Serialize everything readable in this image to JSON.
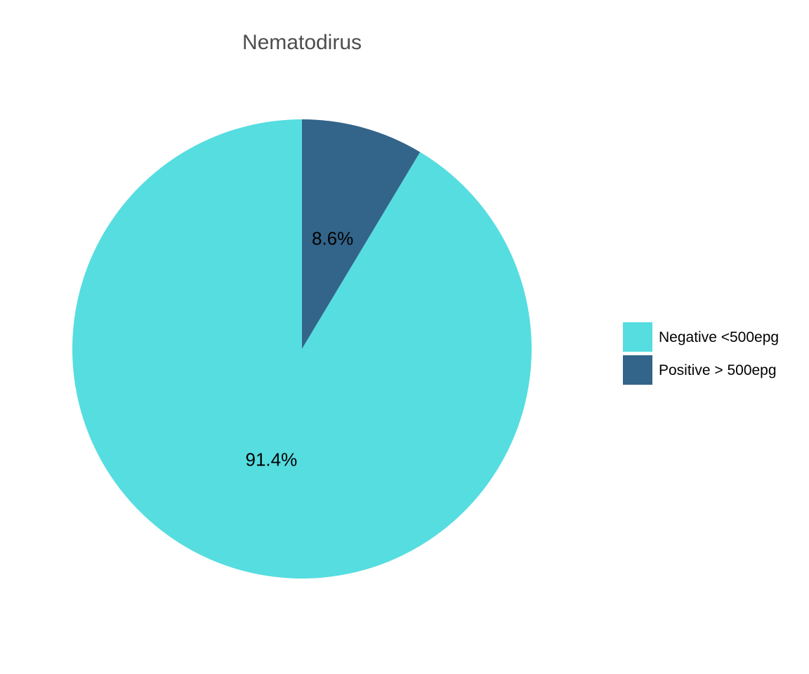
{
  "chart_data": {
    "type": "pie",
    "title": "Nematodirus",
    "slices": [
      {
        "name": "Negative <500epg",
        "value": 91.4,
        "label": "91.4%",
        "color": "#56dde0"
      },
      {
        "name": "Positive > 500epg",
        "value": 8.6,
        "label": "8.6%",
        "color": "#33648a"
      }
    ],
    "legend_position": "right",
    "start_angle": "12 o'clock",
    "direction": "counter-clockwise for first slice (Positive slice clockwise from top)"
  }
}
